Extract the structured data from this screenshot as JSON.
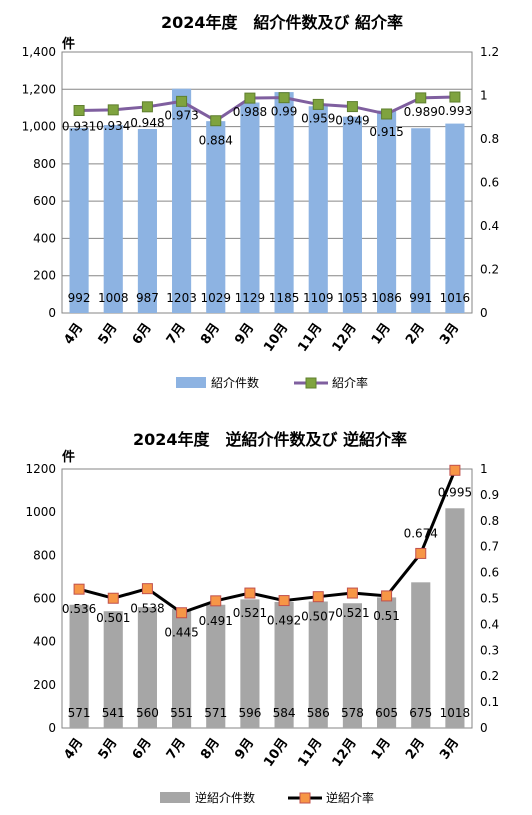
{
  "chart_data": [
    {
      "type": "bar",
      "title": "2024年度　紹介件数及び 紹介率",
      "ylabel": "件",
      "categories": [
        "4月",
        "5月",
        "6月",
        "7月",
        "8月",
        "9月",
        "10月",
        "11月",
        "12月",
        "1月",
        "2月",
        "3月"
      ],
      "series": [
        {
          "name": "紹介件数",
          "type": "bar",
          "axis": "left",
          "color": "#8db3e2",
          "values": [
            992,
            1008,
            987,
            1203,
            1029,
            1129,
            1185,
            1109,
            1053,
            1086,
            991,
            1016
          ]
        },
        {
          "name": "紹介率",
          "type": "line",
          "axis": "right",
          "line_color": "#7f5f9f",
          "marker_color": "#7fa33f",
          "values": [
            0.931,
            0.934,
            0.948,
            0.973,
            0.884,
            0.988,
            0.99,
            0.959,
            0.949,
            0.915,
            0.989,
            0.993
          ],
          "labels": [
            "0.931",
            "0.934",
            "0.948",
            "0.973",
            "0.884",
            "0.988",
            "0.99",
            "0.959",
            "0.949",
            "0.915",
            "0.989",
            "0.993"
          ]
        }
      ],
      "ylim_left": [
        0,
        1400
      ],
      "yticks_left": [
        "0",
        "200",
        "400",
        "600",
        "800",
        "1,000",
        "1,200",
        "1,400"
      ],
      "ylim_right": [
        0,
        1.2
      ],
      "yticks_right": [
        "0",
        "0.2",
        "0.4",
        "0.6",
        "0.8",
        "1",
        "1.2"
      ],
      "grid": true,
      "legend": "bottom"
    },
    {
      "type": "bar",
      "title": "2024年度　逆紹介件数及び 逆紹介率",
      "ylabel": "件",
      "categories": [
        "4月",
        "5月",
        "6月",
        "7月",
        "8月",
        "9月",
        "10月",
        "11月",
        "12月",
        "1月",
        "2月",
        "3月"
      ],
      "series": [
        {
          "name": "逆紹介件数",
          "type": "bar",
          "axis": "left",
          "color": "#a6a6a6",
          "values": [
            571,
            541,
            560,
            551,
            571,
            596,
            584,
            586,
            578,
            605,
            675,
            1018
          ]
        },
        {
          "name": "逆紹介率",
          "type": "line",
          "axis": "right",
          "line_color": "#000000",
          "marker_color": "#f79646",
          "values": [
            0.536,
            0.501,
            0.538,
            0.445,
            0.491,
            0.521,
            0.492,
            0.507,
            0.521,
            0.51,
            0.674,
            0.995
          ],
          "labels": [
            "0.536",
            "0.501",
            "0.538",
            "0.445",
            "0.491",
            "0.521",
            "0.492",
            "0.507",
            "0.521",
            "0.51",
            "0.674",
            "0.995"
          ]
        }
      ],
      "ylim_left": [
        0,
        1200
      ],
      "yticks_left": [
        "0",
        "200",
        "400",
        "600",
        "800",
        "1000",
        "1200"
      ],
      "ylim_right": [
        0,
        1
      ],
      "yticks_right": [
        "0",
        "0.1",
        "0.2",
        "0.3",
        "0.4",
        "0.5",
        "0.6",
        "0.7",
        "0.8",
        "0.9",
        "1"
      ],
      "grid": false,
      "legend": "bottom"
    }
  ]
}
